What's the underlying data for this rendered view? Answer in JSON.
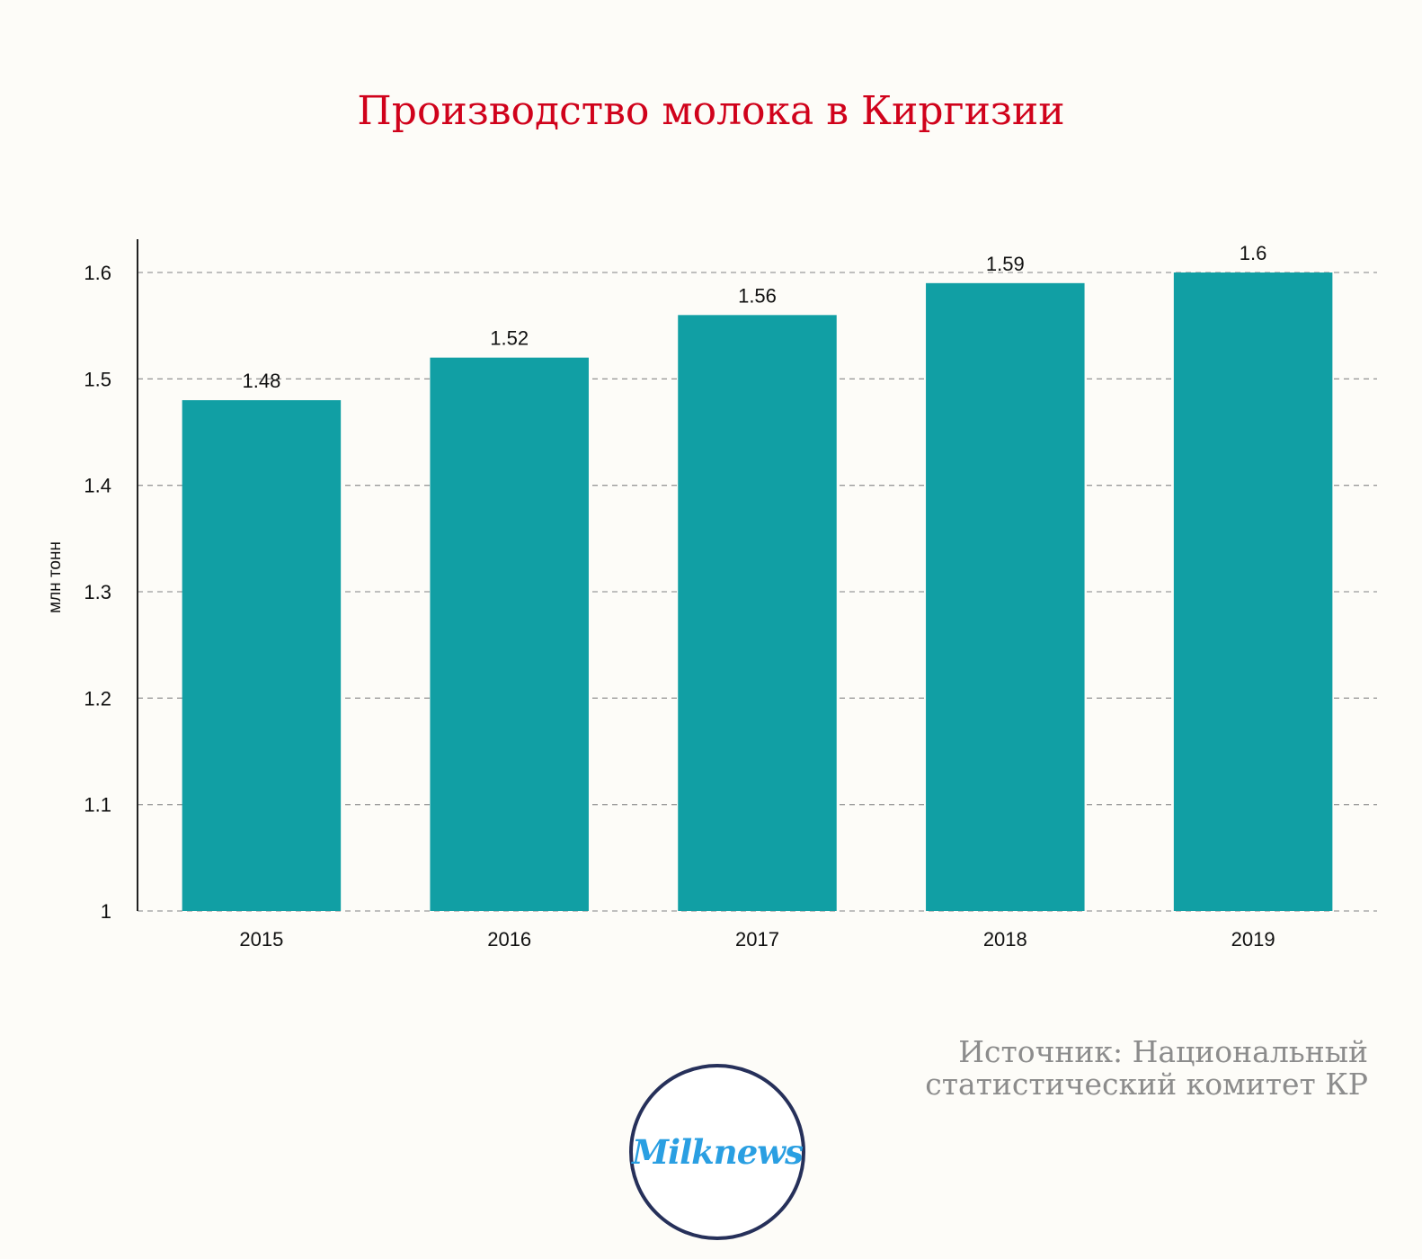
{
  "chart_data": {
    "type": "bar",
    "title": "Производство молока в Киргизии",
    "ylabel": "млн тонн",
    "xlabel": "",
    "categories": [
      "2015",
      "2016",
      "2017",
      "2018",
      "2019"
    ],
    "values": [
      1.48,
      1.52,
      1.56,
      1.59,
      1.6
    ],
    "value_labels": [
      "1.48",
      "1.52",
      "1.56",
      "1.59",
      "1.6"
    ],
    "ylim": [
      1,
      1.6
    ],
    "yticks": [
      1,
      1.1,
      1.2,
      1.3,
      1.4,
      1.5,
      1.6
    ],
    "ytick_labels": [
      "1",
      "1.1",
      "1.2",
      "1.3",
      "1.4",
      "1.5",
      "1.6"
    ],
    "grid": true,
    "bar_color": "#119fa4"
  },
  "source_text": "Источник: Национальный статистический комитет КР",
  "logo_text": "Milknews",
  "colors": {
    "title": "#d0021b",
    "logo_ring": "#26305a",
    "logo_text": "#2a9fe2"
  }
}
